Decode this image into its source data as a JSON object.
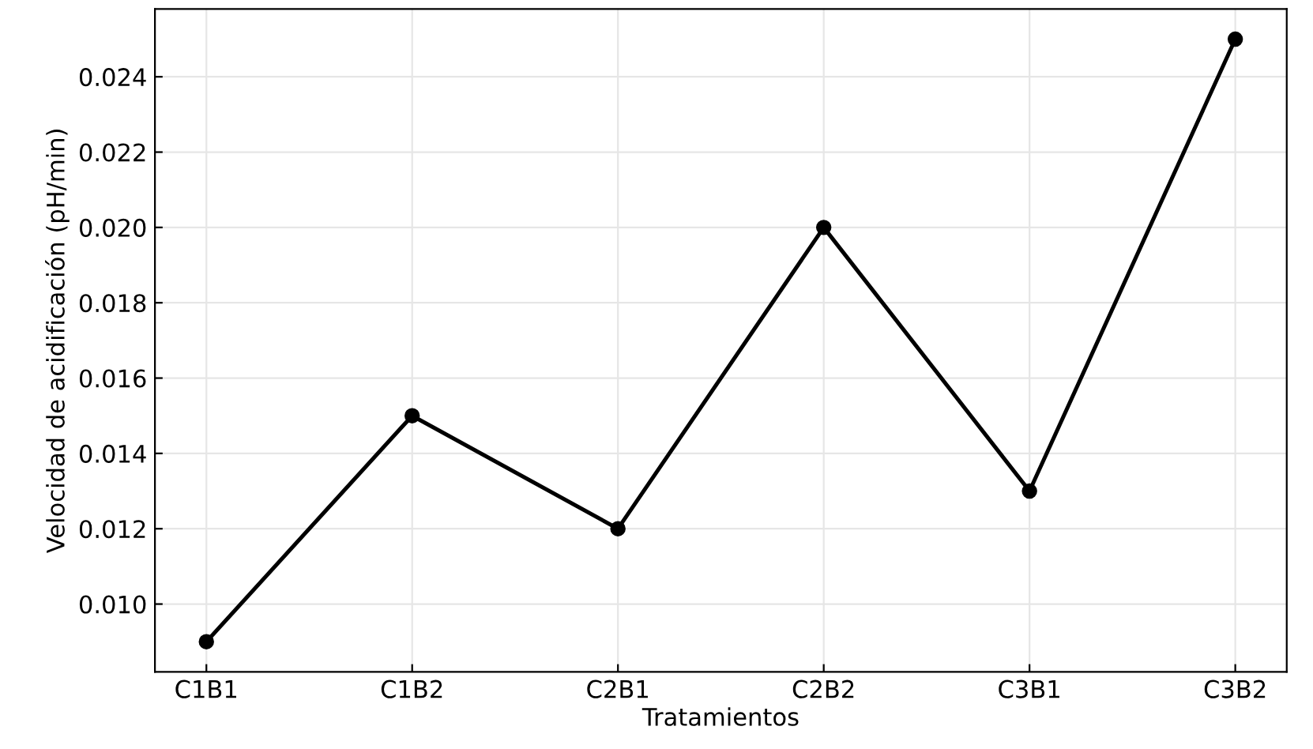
{
  "chart_data": {
    "type": "line",
    "xlabel": "Tratamientos",
    "ylabel": "Velocidad de acidificación (pH/min)",
    "categories": [
      "C1B1",
      "C1B2",
      "C2B1",
      "C2B2",
      "C3B1",
      "C3B2"
    ],
    "series": [
      {
        "color": "#000000",
        "values": [
          0.009,
          0.015,
          0.012,
          0.02,
          0.013,
          0.025
        ]
      }
    ],
    "ylim": [
      0.0082,
      0.0258
    ],
    "yticks": [
      {
        "value": 0.01,
        "label": "0.010"
      },
      {
        "value": 0.012,
        "label": "0.012"
      },
      {
        "value": 0.014,
        "label": "0.014"
      },
      {
        "value": 0.016,
        "label": "0.016"
      },
      {
        "value": 0.018,
        "label": "0.018"
      },
      {
        "value": 0.02,
        "label": "0.020"
      },
      {
        "value": 0.022,
        "label": "0.022"
      },
      {
        "value": 0.024,
        "label": "0.024"
      }
    ],
    "grid": true,
    "marker": "circle",
    "line_style": "solid"
  }
}
